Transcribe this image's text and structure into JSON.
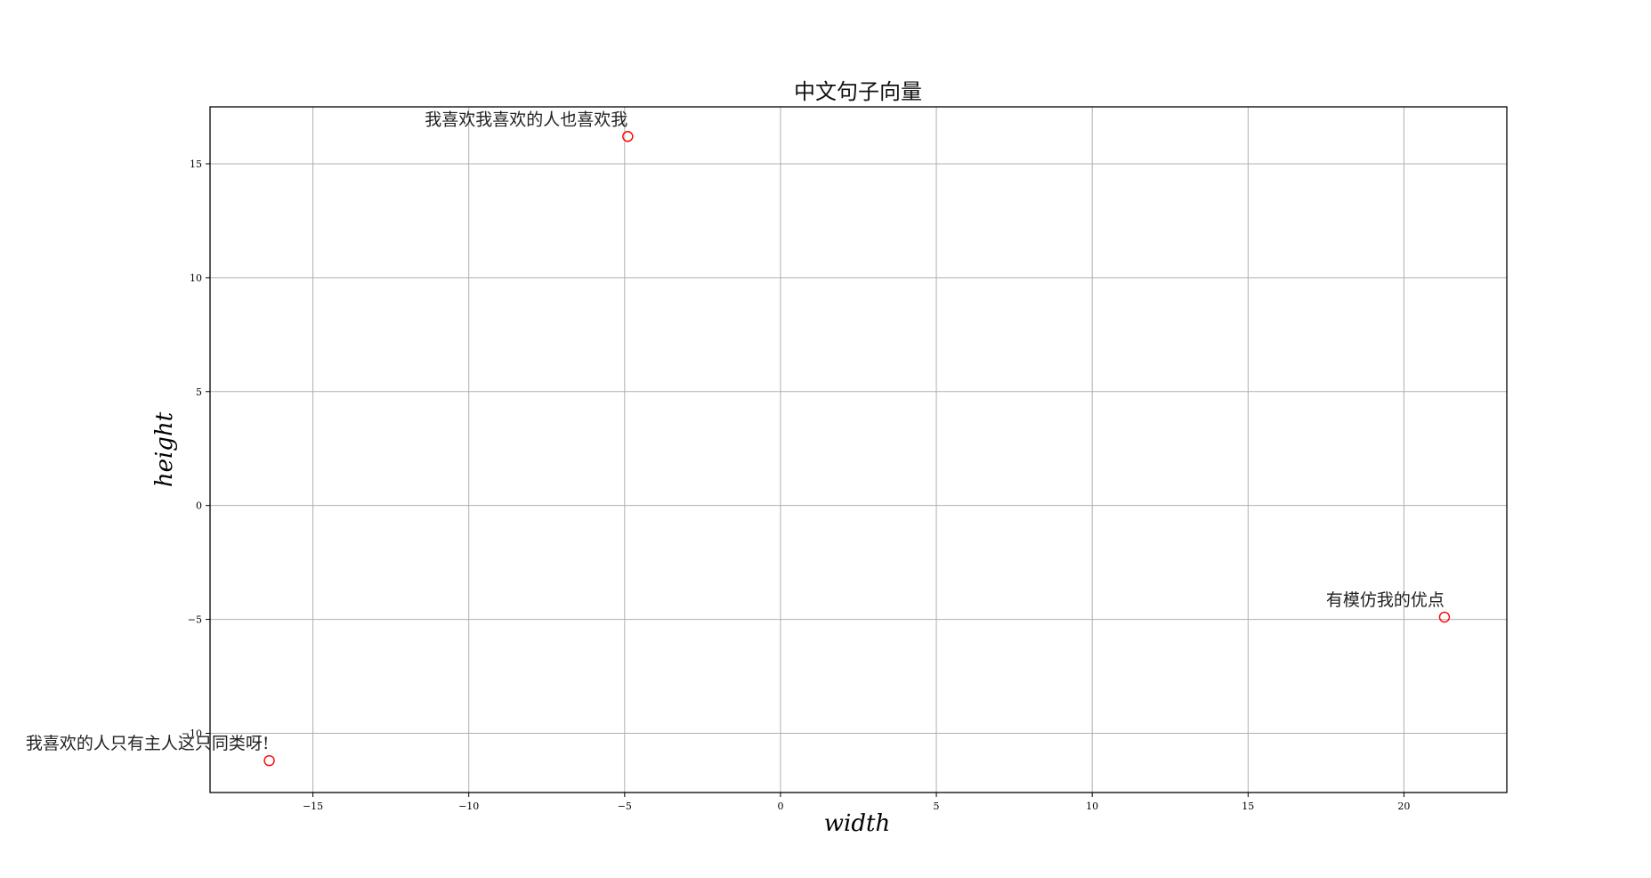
{
  "chart_data": {
    "type": "scatter",
    "title": "中文句子向量",
    "xlabel": "width",
    "ylabel": "height",
    "xlim": [
      -18.3,
      23.3
    ],
    "ylim": [
      -12.6,
      17.5
    ],
    "x_ticks": [
      -15,
      -10,
      -5,
      0,
      5,
      10,
      15,
      20
    ],
    "y_ticks": [
      -10,
      -5,
      0,
      5,
      10,
      15
    ],
    "grid": true,
    "marker": "hollow-circle",
    "colors": {
      "marker": "#ff0000",
      "grid": "#b0b0b0",
      "frame": "#000000"
    },
    "points": [
      {
        "x": -4.9,
        "y": 16.2,
        "label": "我喜欢我喜欢的人也喜欢我"
      },
      {
        "x": 21.3,
        "y": -4.9,
        "label": "有模仿我的优点"
      },
      {
        "x": -16.4,
        "y": -11.2,
        "label": "我喜欢的人只有主人这只同类呀!"
      }
    ]
  }
}
